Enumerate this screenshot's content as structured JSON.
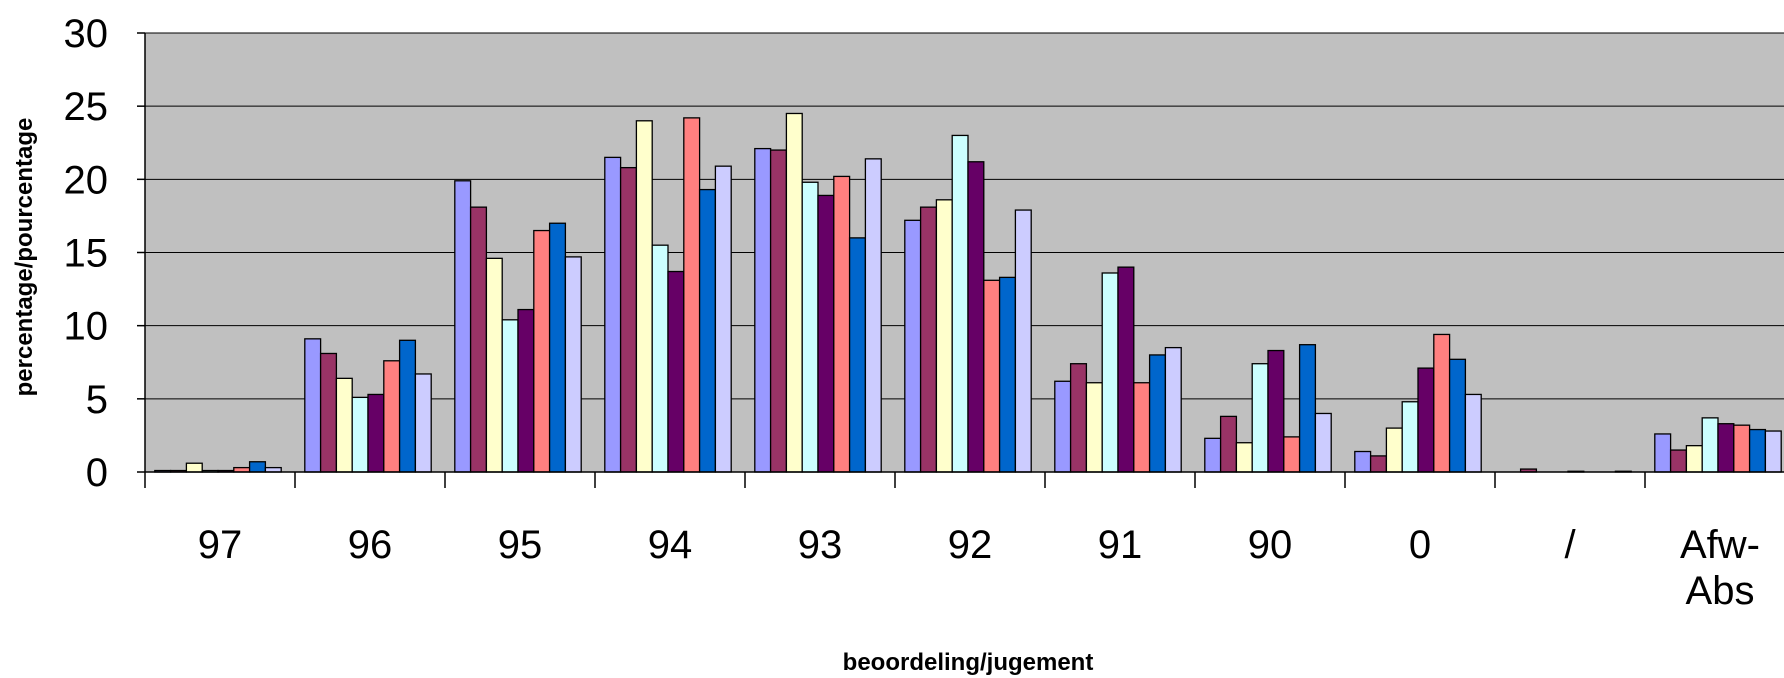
{
  "chart_data": {
    "type": "bar",
    "title": "",
    "xlabel": "beoordeling/jugement",
    "ylabel": "percentage/pourcentage",
    "ylim": [
      0,
      30
    ],
    "yticks": [
      0,
      5,
      10,
      15,
      20,
      25,
      30
    ],
    "grid": true,
    "categories": [
      [
        "97"
      ],
      [
        "96"
      ],
      [
        "95"
      ],
      [
        "94"
      ],
      [
        "93"
      ],
      [
        "92"
      ],
      [
        "91"
      ],
      [
        "90"
      ],
      [
        "0"
      ],
      [
        "/"
      ],
      [
        "Afw-",
        "Abs"
      ]
    ],
    "series": [
      {
        "color": "#9999FF",
        "values": [
          0.1,
          9.1,
          19.9,
          21.5,
          22.1,
          17.2,
          6.2,
          2.3,
          1.4,
          0.0,
          2.6
        ]
      },
      {
        "color": "#993366",
        "values": [
          0.1,
          8.1,
          18.1,
          20.8,
          22.0,
          18.1,
          7.4,
          3.8,
          1.1,
          0.2,
          1.5
        ]
      },
      {
        "color": "#FFFFCC",
        "values": [
          0.6,
          6.4,
          14.6,
          24.0,
          24.5,
          18.6,
          6.1,
          2.0,
          3.0,
          0.0,
          1.8
        ]
      },
      {
        "color": "#CCFFFF",
        "values": [
          0.1,
          5.1,
          10.4,
          15.5,
          19.8,
          23.0,
          13.6,
          7.4,
          4.8,
          0.0,
          3.7
        ]
      },
      {
        "color": "#660066",
        "values": [
          0.1,
          5.3,
          11.1,
          13.7,
          18.9,
          21.2,
          14.0,
          8.3,
          7.1,
          0.05,
          3.3
        ]
      },
      {
        "color": "#FF8080",
        "values": [
          0.3,
          7.6,
          16.5,
          24.2,
          20.2,
          13.1,
          6.1,
          2.4,
          9.4,
          0.0,
          3.2
        ]
      },
      {
        "color": "#0066CC",
        "values": [
          0.7,
          9.0,
          17.0,
          19.3,
          16.0,
          13.3,
          8.0,
          8.7,
          7.7,
          0.0,
          2.9
        ]
      },
      {
        "color": "#CCCCFF",
        "values": [
          0.3,
          6.7,
          14.7,
          20.9,
          21.4,
          17.9,
          8.5,
          4.0,
          5.3,
          0.05,
          2.8
        ]
      }
    ],
    "colors": {
      "plot_background": "#C0C0C0",
      "gridline": "#000000",
      "bar_outline": "#000000"
    }
  }
}
